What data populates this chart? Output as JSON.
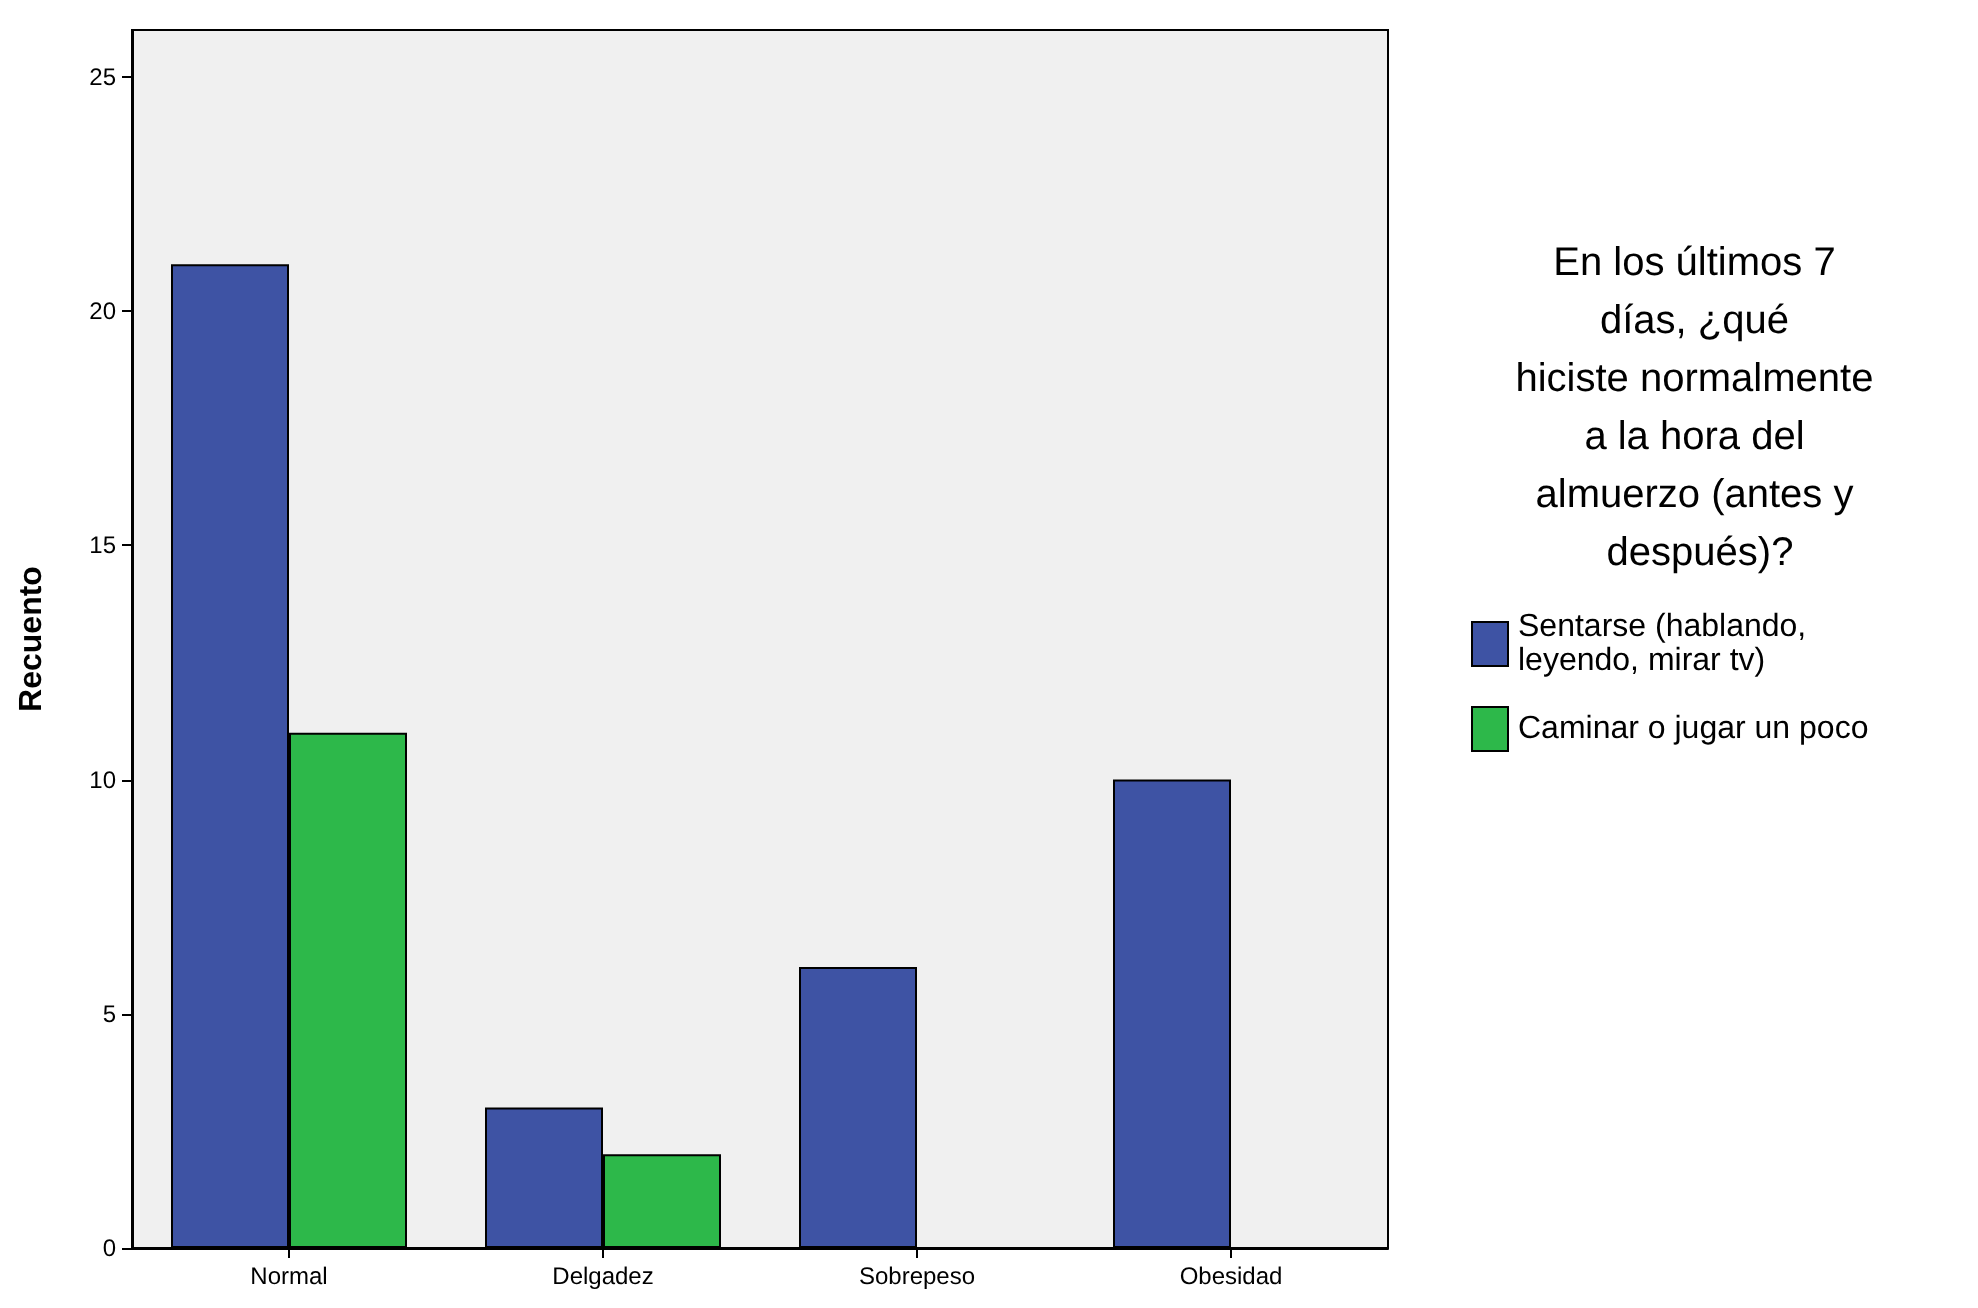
{
  "chart_data": {
    "type": "bar",
    "ylabel": "Recuento",
    "legend_title": "En los últimos 7 días, ¿qué hiciste normalmente a la hora del almuerzo (antes y después)?",
    "categories": [
      "Normal",
      "Delgadez",
      "Sobrepeso",
      "Obesidad"
    ],
    "series": [
      {
        "name": "Sentarse (hablando, leyendo, mirar tv)",
        "color": "#3e53a4",
        "values": [
          21,
          3,
          6,
          10
        ]
      },
      {
        "name": "Caminar o jugar un poco",
        "color": "#2db84a",
        "values": [
          11,
          2,
          null,
          null
        ]
      }
    ],
    "ylim": [
      0,
      26
    ],
    "yticks": [
      0,
      5,
      10,
      15,
      20,
      25
    ],
    "grid": false,
    "legend": "right"
  }
}
